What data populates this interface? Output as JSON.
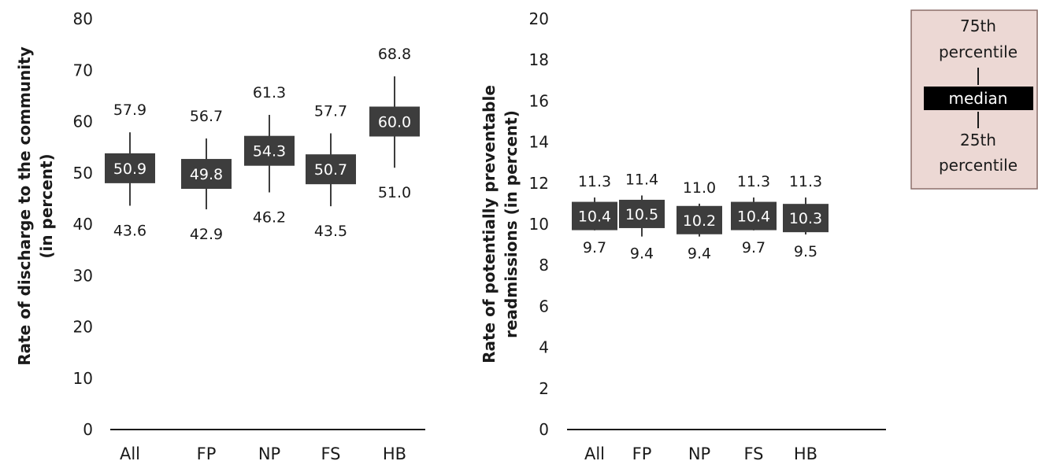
{
  "chart_data": [
    {
      "type": "boxplot",
      "ylabel": [
        "Rate of discharge to the community",
        "(in percent)"
      ],
      "ylim": [
        0,
        80
      ],
      "yticks": [
        0,
        10,
        20,
        30,
        40,
        50,
        60,
        70,
        80
      ],
      "categories": [
        "All",
        "FP",
        "NP",
        "FS",
        "HB"
      ],
      "p75": [
        57.9,
        56.7,
        61.3,
        57.7,
        68.8
      ],
      "median": [
        50.9,
        49.8,
        54.3,
        50.7,
        60.0
      ],
      "p25": [
        43.6,
        42.9,
        46.2,
        43.5,
        51.0
      ],
      "p75_labels": [
        "57.9",
        "56.7",
        "61.3",
        "57.7",
        "68.8"
      ],
      "median_labels": [
        "50.9",
        "49.8",
        "54.3",
        "50.7",
        "60.0"
      ],
      "p25_labels": [
        "43.6",
        "42.9",
        "46.2",
        "43.5",
        "51.0"
      ]
    },
    {
      "type": "boxplot",
      "ylabel": [
        "Rate of potentially preventable",
        "readmissions (in percent)"
      ],
      "ylim": [
        0,
        20
      ],
      "yticks": [
        0,
        2,
        4,
        6,
        8,
        10,
        12,
        14,
        16,
        18,
        20
      ],
      "categories": [
        "All",
        "FP",
        "NP",
        "FS",
        "HB"
      ],
      "p75": [
        11.3,
        11.4,
        11.0,
        11.3,
        11.3
      ],
      "median": [
        10.4,
        10.5,
        10.2,
        10.4,
        10.3
      ],
      "p25": [
        9.7,
        9.4,
        9.4,
        9.7,
        9.5
      ],
      "p75_labels": [
        "11.3",
        "11.4",
        "11.0",
        "11.3",
        "11.3"
      ],
      "median_labels": [
        "10.4",
        "10.5",
        "10.2",
        "10.4",
        "10.3"
      ],
      "p25_labels": [
        "9.7",
        "9.4",
        "9.4",
        "9.7",
        "9.5"
      ]
    }
  ],
  "legend": {
    "top_label": [
      "75th",
      "percentile"
    ],
    "middle_label": "median",
    "bottom_label": [
      "25th",
      "percentile"
    ]
  },
  "colors": {
    "median_box": "#3d3d3d",
    "whisker": "#3d3d3d",
    "legend_background": "#ecd8d4",
    "legend_border": "#8c6f6a"
  }
}
